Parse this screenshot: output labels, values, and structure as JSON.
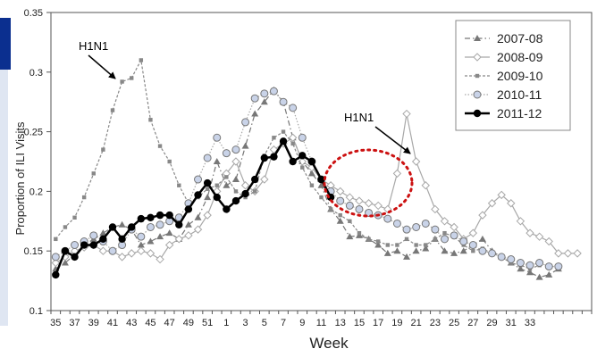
{
  "chart_data": {
    "type": "line",
    "xlabel": "Week",
    "ylabel": "Proportion of ILI Visits",
    "ylim": [
      0.1,
      0.35
    ],
    "yticks": [
      "0.1",
      "0.15",
      "0.2",
      "0.25",
      "0.3",
      "0.35"
    ],
    "xtick_labels": [
      "35",
      "37",
      "39",
      "41",
      "43",
      "45",
      "47",
      "49",
      "51",
      "1",
      "3",
      "5",
      "7",
      "9",
      "11",
      "13",
      "15",
      "17",
      "19",
      "21",
      "23",
      "25",
      "27",
      "29",
      "31",
      "33"
    ],
    "legend_position": "top-right",
    "grid": false,
    "annotations": [
      {
        "text": "H1N1",
        "points_to": "2009-10 peak near week 43"
      },
      {
        "text": "H1N1",
        "points_to": "2008-09 peak near week 18"
      }
    ],
    "highlight": "dotted red circle around 2011-12 weeks 10-14",
    "series": [
      {
        "name": "2007-08",
        "color": "#777777",
        "marker": "triangle",
        "values": [
          0.135,
          0.14,
          0.147,
          0.155,
          0.16,
          0.165,
          0.17,
          0.172,
          0.168,
          0.155,
          0.158,
          0.162,
          0.165,
          0.16,
          0.172,
          0.178,
          0.195,
          0.225,
          0.205,
          0.21,
          0.238,
          0.265,
          0.275,
          0.285,
          0.275,
          0.245,
          0.225,
          0.215,
          0.205,
          0.185,
          0.175,
          0.162,
          0.163,
          0.16,
          0.155,
          0.148,
          0.15,
          0.145,
          0.15,
          0.152,
          0.16,
          0.15,
          0.148,
          0.15,
          0.155,
          0.16,
          0.15,
          0.145,
          0.14,
          0.135,
          0.132,
          0.128,
          0.13,
          0.135
        ]
      },
      {
        "name": "2008-09",
        "color": "#a8a8a8",
        "marker": "diamond",
        "values": [
          0.14,
          0.145,
          0.15,
          0.153,
          0.155,
          0.15,
          0.15,
          0.145,
          0.148,
          0.15,
          0.148,
          0.143,
          0.155,
          0.16,
          0.163,
          0.168,
          0.18,
          0.2,
          0.215,
          0.225,
          0.205,
          0.2,
          0.21,
          0.235,
          0.24,
          0.245,
          0.225,
          0.22,
          0.21,
          0.205,
          0.2,
          0.195,
          0.192,
          0.19,
          0.188,
          0.185,
          0.215,
          0.265,
          0.225,
          0.205,
          0.185,
          0.175,
          0.17,
          0.16,
          0.165,
          0.18,
          0.19,
          0.197,
          0.19,
          0.175,
          0.165,
          0.162,
          0.158,
          0.148,
          0.148,
          0.148
        ]
      },
      {
        "name": "2009-10",
        "color": "#888888",
        "marker": "square",
        "values": [
          0.16,
          0.17,
          0.178,
          0.195,
          0.215,
          0.235,
          0.268,
          0.292,
          0.295,
          0.31,
          0.26,
          0.238,
          0.225,
          0.205,
          0.19,
          0.195,
          0.202,
          0.205,
          0.212,
          0.2,
          0.195,
          0.2,
          0.23,
          0.245,
          0.25,
          0.24,
          0.22,
          0.205,
          0.195,
          0.185,
          0.18,
          0.175,
          0.165,
          0.16,
          0.158,
          0.155,
          0.155,
          0.16,
          0.155,
          0.155,
          0.16,
          0.165,
          0.162,
          0.155,
          0.15,
          0.152,
          0.148,
          0.145,
          0.14,
          0.138,
          0.135,
          0.138
        ]
      },
      {
        "name": "2010-11",
        "color": "#a8a8a8",
        "marker": "circle",
        "values": [
          0.145,
          0.15,
          0.155,
          0.158,
          0.163,
          0.158,
          0.15,
          0.155,
          0.168,
          0.162,
          0.17,
          0.172,
          0.175,
          0.178,
          0.19,
          0.21,
          0.228,
          0.245,
          0.232,
          0.235,
          0.258,
          0.278,
          0.282,
          0.284,
          0.275,
          0.27,
          0.245,
          0.225,
          0.21,
          0.2,
          0.192,
          0.188,
          0.185,
          0.182,
          0.18,
          0.177,
          0.173,
          0.168,
          0.17,
          0.173,
          0.168,
          0.16,
          0.163,
          0.158,
          0.155,
          0.15,
          0.148,
          0.145,
          0.143,
          0.14,
          0.138,
          0.14,
          0.137,
          0.137
        ]
      },
      {
        "name": "2011-12",
        "color": "#000000",
        "marker": "circle-filled",
        "values": [
          0.13,
          0.15,
          0.145,
          0.155,
          0.155,
          0.16,
          0.17,
          0.16,
          0.17,
          0.177,
          0.178,
          0.18,
          0.18,
          0.172,
          0.185,
          0.197,
          0.207,
          0.195,
          0.185,
          0.192,
          0.198,
          0.21,
          0.228,
          0.229,
          0.242,
          0.225,
          0.23,
          0.225,
          0.21,
          0.195
        ]
      }
    ]
  }
}
